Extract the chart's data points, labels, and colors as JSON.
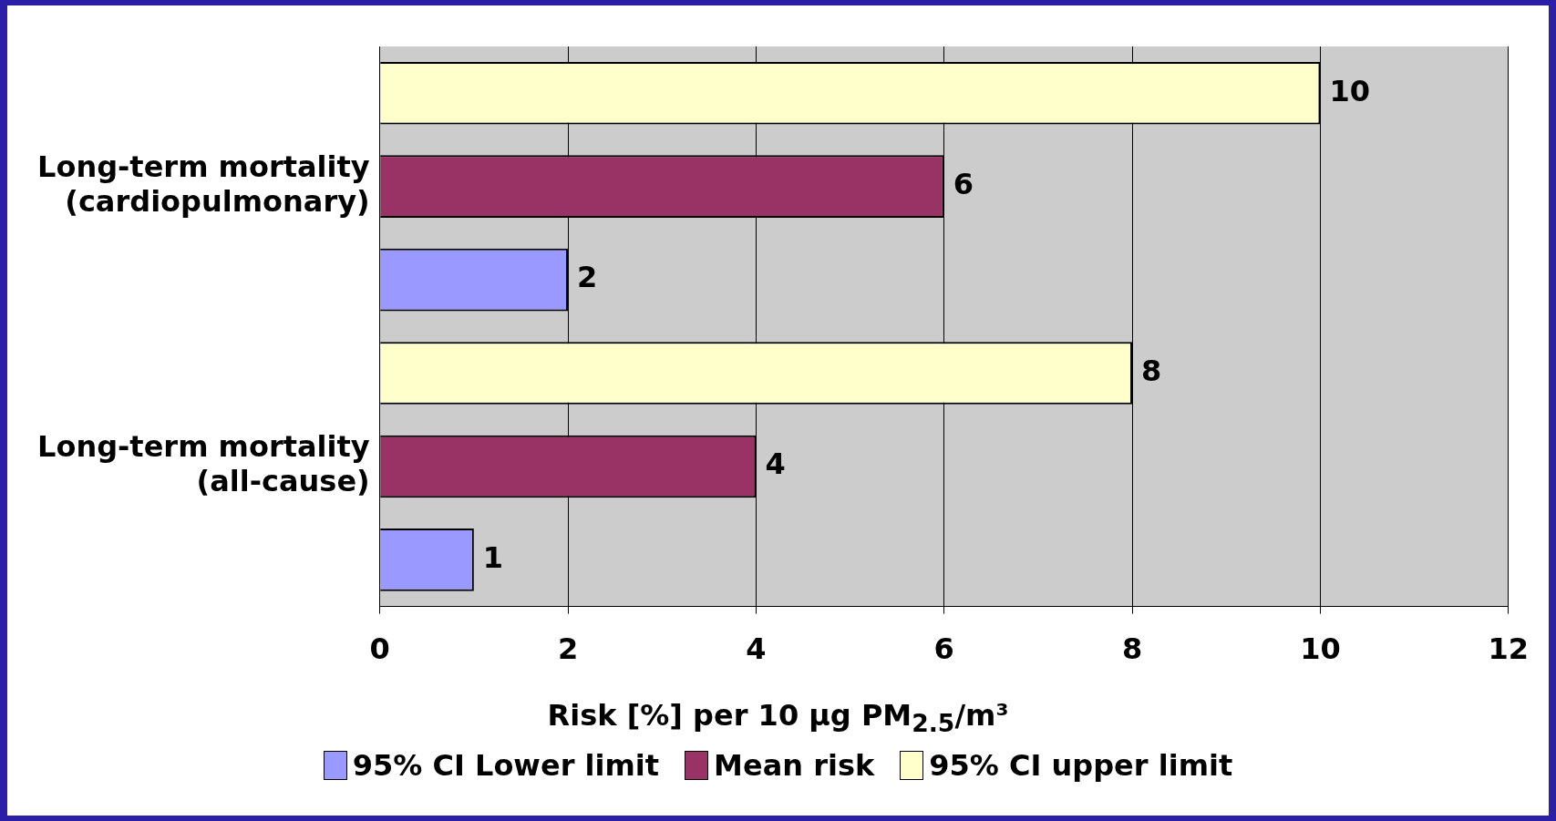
{
  "chart_data": {
    "type": "bar",
    "orientation": "horizontal",
    "categories": [
      "Long-term mortality (cardiopulmonary)",
      "Long-term mortality (all-cause)"
    ],
    "series": [
      {
        "name": "95% CI Lower limit",
        "color": "#9999ff",
        "values": [
          2,
          1
        ]
      },
      {
        "name": "Mean risk",
        "color": "#993366",
        "values": [
          6,
          4
        ]
      },
      {
        "name": "95% CI upper limit",
        "color": "#ffffcc",
        "values": [
          10,
          8
        ]
      }
    ],
    "xlabel": "Risk [%] per 10 µg PM$_{2.5}$/m³",
    "xlim": [
      0,
      12
    ],
    "xticks": [
      0,
      2,
      4,
      6,
      8,
      10,
      12
    ],
    "grid": "x",
    "legend": "bottom",
    "data_labels": true
  }
}
